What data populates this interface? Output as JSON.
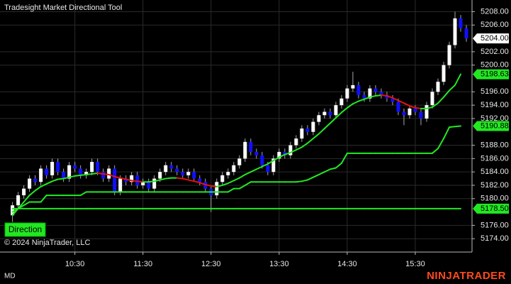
{
  "chart_data": {
    "type": "candlestick",
    "title": "Tradesight Market Directional Tool",
    "copyright": "© 2024 NinjaTrader, LLC",
    "button": "Direction",
    "footer_left": "MD",
    "brand": "NINJATRADER",
    "x": [
      575,
      580,
      585,
      590,
      595,
      600,
      605,
      610,
      615,
      620,
      625,
      630,
      635,
      640,
      645,
      650,
      655,
      660,
      665,
      670,
      675,
      680,
      685,
      690,
      695,
      700,
      705,
      710,
      715,
      720,
      725,
      730,
      735,
      740,
      745,
      750,
      755,
      760,
      765,
      770,
      775,
      780,
      785,
      790,
      795,
      800,
      805,
      810,
      815,
      820,
      825,
      830,
      835,
      840,
      845,
      850,
      855,
      860,
      865,
      870,
      875,
      880,
      885,
      890,
      895,
      900,
      905,
      910,
      915,
      920,
      925,
      930,
      935,
      940,
      945,
      950,
      955,
      960,
      965,
      970,
      975
    ],
    "open": [
      5177.5,
      5179,
      5180.5,
      5181.5,
      5183,
      5182.5,
      5184.5,
      5183.5,
      5185.5,
      5184,
      5183,
      5185,
      5184.5,
      5183.5,
      5184,
      5185.5,
      5184,
      5183,
      5184.5,
      5181,
      5183,
      5182.5,
      5183.5,
      5182,
      5182.5,
      5181.5,
      5183,
      5184,
      5185,
      5184.5,
      5184,
      5183.5,
      5184,
      5183,
      5182.5,
      5181.5,
      5180.5,
      5182.5,
      5183.5,
      5184,
      5185,
      5186,
      5188.5,
      5187,
      5186.5,
      5185,
      5184,
      5186,
      5187,
      5186.5,
      5188,
      5189,
      5190.5,
      5190,
      5191.5,
      5192.5,
      5193,
      5192.5,
      5194,
      5195,
      5196.5,
      5197,
      5195.5,
      5195,
      5196.5,
      5196,
      5195.5,
      5195,
      5194.5,
      5193,
      5192.5,
      5193.5,
      5193,
      5192,
      5194,
      5196,
      5197.5,
      5200,
      5203,
      5207,
      5205.5
    ],
    "high": [
      5179.5,
      5181,
      5182,
      5183.5,
      5183.5,
      5185,
      5185,
      5186,
      5186,
      5184.5,
      5185.5,
      5185.5,
      5185,
      5184.5,
      5186,
      5186,
      5184.5,
      5185,
      5185,
      5183.5,
      5183.5,
      5184,
      5184,
      5183,
      5183,
      5183.5,
      5184.5,
      5185.5,
      5185.5,
      5185,
      5184.5,
      5184.5,
      5184.5,
      5183.5,
      5183,
      5182,
      5183,
      5184,
      5184.5,
      5185.5,
      5186.5,
      5189,
      5189,
      5187.5,
      5187,
      5185.5,
      5186.5,
      5187.5,
      5187.5,
      5188.5,
      5189.5,
      5191,
      5191,
      5192,
      5193,
      5193.5,
      5193.5,
      5194.5,
      5195.5,
      5197,
      5199,
      5197.5,
      5196,
      5197,
      5197,
      5196.5,
      5196,
      5195.5,
      5195,
      5193.5,
      5194,
      5194,
      5193.5,
      5194.5,
      5196.5,
      5198,
      5200.5,
      5203.5,
      5208,
      5207.5,
      5206
    ],
    "low": [
      5176.5,
      5178.5,
      5180,
      5181,
      5182,
      5182,
      5183,
      5183,
      5183.5,
      5182.5,
      5182.5,
      5184,
      5183,
      5183,
      5183.5,
      5183.5,
      5182.5,
      5182.5,
      5180.5,
      5180.5,
      5182,
      5182,
      5181.5,
      5181.5,
      5181,
      5181,
      5182.5,
      5183.5,
      5184,
      5183.5,
      5183,
      5183,
      5182.5,
      5182,
      5181,
      5178,
      5180,
      5182,
      5183,
      5183.5,
      5184.5,
      5185.5,
      5186.5,
      5186,
      5184.5,
      5183.5,
      5183.5,
      5185.5,
      5186,
      5186,
      5187.5,
      5188.5,
      5189.5,
      5189.5,
      5191,
      5192,
      5192,
      5192,
      5193.5,
      5194.5,
      5196,
      5195,
      5194.5,
      5194.5,
      5195.5,
      5195,
      5194.5,
      5194,
      5192.5,
      5191,
      5192,
      5192.5,
      5191,
      5191.5,
      5193.5,
      5195.5,
      5197,
      5199.5,
      5202.5,
      5205,
      5203.5
    ],
    "close": [
      5179,
      5180.5,
      5181.5,
      5183,
      5182.5,
      5184.5,
      5183.5,
      5185.5,
      5184,
      5183,
      5185,
      5184.5,
      5183.5,
      5184,
      5185.5,
      5184,
      5183,
      5184.5,
      5181,
      5183,
      5182.5,
      5183.5,
      5182,
      5182.5,
      5181.5,
      5183,
      5184,
      5185,
      5184.5,
      5184,
      5183.5,
      5184,
      5183,
      5182.5,
      5181.5,
      5180.5,
      5182.5,
      5183.5,
      5184,
      5185,
      5186,
      5188.5,
      5187,
      5186.5,
      5185,
      5184,
      5186,
      5187,
      5186.5,
      5188,
      5189,
      5190.5,
      5190,
      5191.5,
      5192.5,
      5193,
      5192.5,
      5194,
      5195,
      5196.5,
      5197,
      5195.5,
      5195,
      5196.5,
      5196,
      5195.5,
      5195,
      5194.5,
      5193,
      5192.5,
      5193.5,
      5193,
      5192,
      5194,
      5196,
      5197.5,
      5200,
      5203,
      5207,
      5205.5,
      5204
    ],
    "up_color": "#ffffff",
    "down_color": "#1010ff",
    "wick_color": "#a8a8a8",
    "lines": [
      {
        "color": "#22e822",
        "falling_color": "#e81010",
        "label": "5198.63",
        "values": [
          5177.5,
          5178.5,
          5179.5,
          5180.5,
          5181.2,
          5181.8,
          5182.2,
          5182.6,
          5182.9,
          5183,
          5183.2,
          5183.4,
          5183.5,
          5183.6,
          5183.7,
          5183.8,
          5183.7,
          5183.6,
          5183.3,
          5183.1,
          5182.9,
          5182.7,
          5182.6,
          5182.5,
          5182.5,
          5182.6,
          5182.8,
          5183,
          5183.1,
          5183.1,
          5183,
          5182.8,
          5182.6,
          5182.4,
          5182.1,
          5181.9,
          5181.8,
          5182,
          5182.3,
          5182.7,
          5183.1,
          5183.6,
          5184,
          5184.4,
          5184.8,
          5185.2,
          5185.7,
          5186.2,
          5186.6,
          5186.9,
          5187.3,
          5187.7,
          5188.3,
          5189,
          5189.7,
          5190.5,
          5191.3,
          5192.1,
          5192.9,
          5193.6,
          5194.2,
          5194.6,
          5194.9,
          5195.2,
          5195.4,
          5195.5,
          5195.4,
          5195.1,
          5194.7,
          5194.3,
          5193.9,
          5193.6,
          5193.5,
          5193.5,
          5193.7,
          5194.3,
          5195.2,
          5196.2,
          5197,
          5198.63,
          null
        ]
      },
      {
        "color": "#22e822",
        "label": "5190.88",
        "values": [
          5178,
          5178.5,
          5179,
          5179.5,
          5179.5,
          5179.5,
          5180.5,
          5180.5,
          5180.5,
          5180.5,
          5180.5,
          5180.5,
          5180.5,
          5181,
          5181,
          5181,
          5181,
          5181,
          5181,
          5181,
          5181,
          5181,
          5181,
          5181,
          5181,
          5181,
          5181,
          5181,
          5181,
          5181,
          5181,
          5181,
          5181,
          5181,
          5181,
          5181,
          5181,
          5181,
          5181,
          5181.5,
          5181.5,
          5182,
          5182.5,
          5182.5,
          5182.5,
          5182.5,
          5182.5,
          5182.5,
          5182.5,
          5182.5,
          5182.5,
          5182.6,
          5182.8,
          5183.2,
          5183.6,
          5184,
          5184.4,
          5184.6,
          5185.3,
          5186.8,
          5186.8,
          5186.8,
          5186.8,
          5186.8,
          5186.8,
          5186.8,
          5186.8,
          5186.8,
          5186.8,
          5186.8,
          5186.8,
          5186.8,
          5186.8,
          5186.8,
          5186.8,
          5187.5,
          5189,
          5190.7,
          5190.8,
          5190.88,
          null
        ]
      },
      {
        "color": "#22e822",
        "label": "5178.50",
        "values": [
          5178.5,
          5178.5,
          5178.5,
          5178.5,
          5178.5,
          5178.5,
          5178.5,
          5178.5,
          5178.5,
          5178.5,
          5178.5,
          5178.5,
          5178.5,
          5178.5,
          5178.5,
          5178.5,
          5178.5,
          5178.5,
          5178.5,
          5178.5,
          5178.5,
          5178.5,
          5178.5,
          5178.5,
          5178.5,
          5178.5,
          5178.5,
          5178.5,
          5178.5,
          5178.5,
          5178.5,
          5178.5,
          5178.5,
          5178.5,
          5178.5,
          5178.5,
          5178.5,
          5178.5,
          5178.5,
          5178.5,
          5178.5,
          5178.5,
          5178.5,
          5178.5,
          5178.5,
          5178.5,
          5178.5,
          5178.5,
          5178.5,
          5178.5,
          5178.5,
          5178.5,
          5178.5,
          5178.5,
          5178.5,
          5178.5,
          5178.5,
          5178.5,
          5178.5,
          5178.5,
          5178.5,
          5178.5,
          5178.5,
          5178.5,
          5178.5,
          5178.5,
          5178.5,
          5178.5,
          5178.5,
          5178.5,
          5178.5,
          5178.5,
          5178.5,
          5178.5,
          5178.5,
          5178.5,
          5178.5,
          5178.5,
          5178.5,
          5178.5,
          null
        ]
      }
    ],
    "price_label": {
      "value": 5204,
      "label": "5204.00"
    },
    "xlim": [
      564,
      980
    ],
    "xticks": [
      {
        "value": 630,
        "label": "10:30"
      },
      {
        "value": 690,
        "label": "11:30"
      },
      {
        "value": 750,
        "label": "12:30"
      },
      {
        "value": 810,
        "label": "13:30"
      },
      {
        "value": 870,
        "label": "14:30"
      },
      {
        "value": 930,
        "label": "15:30"
      }
    ],
    "ylim": [
      5172,
      5209.75
    ],
    "yticks": [
      {
        "value": 5174,
        "label": "5174.00"
      },
      {
        "value": 5176,
        "label": "5176.00"
      },
      {
        "value": 5180,
        "label": "5180.00"
      },
      {
        "value": 5182,
        "label": "5182.00"
      },
      {
        "value": 5184,
        "label": "5184.00"
      },
      {
        "value": 5186,
        "label": "5186.00"
      },
      {
        "value": 5188,
        "label": "5188.00"
      },
      {
        "value": 5192,
        "label": "5192.00"
      },
      {
        "value": 5194,
        "label": "5194.00"
      },
      {
        "value": 5196,
        "label": "5196.00"
      },
      {
        "value": 5200,
        "label": "5200.00"
      },
      {
        "value": 5202,
        "label": "5202.00"
      },
      {
        "value": 5206,
        "label": "5206.00"
      },
      {
        "value": 5208,
        "label": "5208.00"
      }
    ],
    "grid": true
  }
}
